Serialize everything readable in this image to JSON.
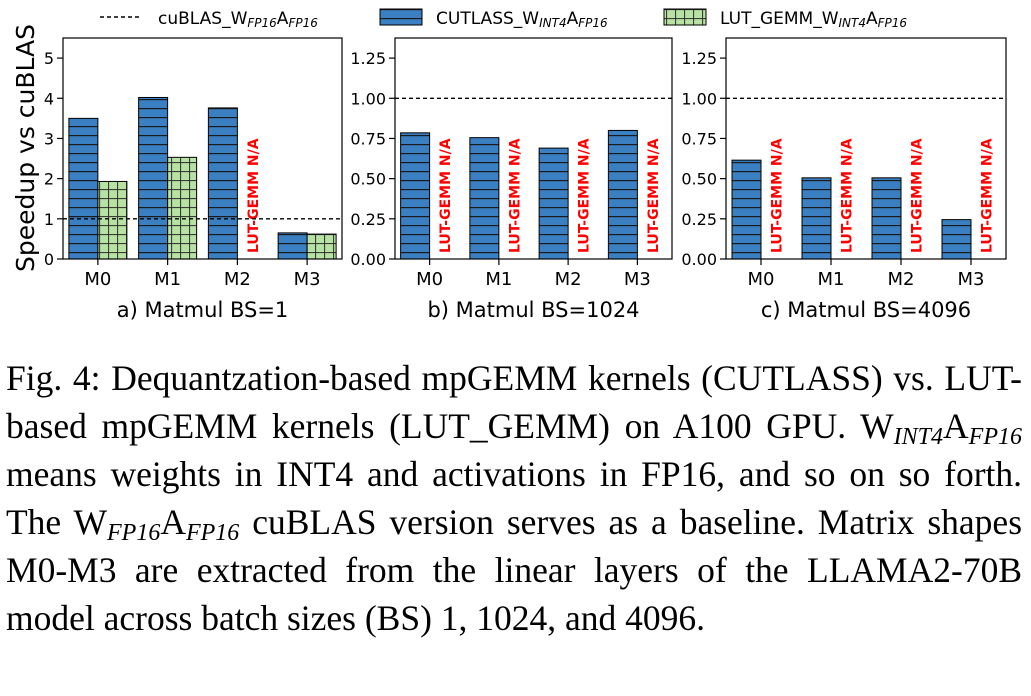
{
  "legend": [
    {
      "kind": "line",
      "text": "cuBLAS_W",
      "sub1": "FP16",
      "mid": "A",
      "sub2": "FP16"
    },
    {
      "kind": "box",
      "text": "CUTLASS_W",
      "sub1": "INT4",
      "mid": "A",
      "sub2": "FP16",
      "fill": "#3a7fc1",
      "hatch": "h"
    },
    {
      "kind": "box",
      "text": "LUT_GEMM_W",
      "sub1": "INT4",
      "mid": "A",
      "sub2": "FP16",
      "fill": "#b7e2a3",
      "hatch": "hv"
    }
  ],
  "y_axis_label": "Speedup vs cuBLAS",
  "colors": {
    "cutlass": "#3a7fc1",
    "lut": "#b7e2a3",
    "na": "#ff0000"
  },
  "chart_data": [
    {
      "type": "bar",
      "subtitle": "a) Matmul BS=1",
      "categories": [
        "M0",
        "M1",
        "M2",
        "M3"
      ],
      "ylim": [
        0,
        5.5
      ],
      "yticks": [
        0,
        1,
        2,
        3,
        4,
        5
      ],
      "yticklabels": [
        "0",
        "1",
        "2",
        "3",
        "4",
        "5"
      ],
      "baseline": 1.0,
      "series": [
        {
          "name": "CUTLASS",
          "values": [
            3.5,
            4.02,
            3.76,
            0.65
          ]
        },
        {
          "name": "LUT_GEMM",
          "values": [
            1.93,
            2.53,
            null,
            0.62
          ]
        }
      ],
      "na_label": "LUT-GEMM N/A",
      "na_categories": [
        2
      ]
    },
    {
      "type": "bar",
      "subtitle": "b) Matmul BS=1024",
      "categories": [
        "M0",
        "M1",
        "M2",
        "M3"
      ],
      "ylim": [
        0,
        1.375
      ],
      "yticks": [
        0,
        0.25,
        0.5,
        0.75,
        1.0,
        1.25
      ],
      "yticklabels": [
        "0.00",
        "0.25",
        "0.50",
        "0.75",
        "1.00",
        "1.25"
      ],
      "baseline": 1.0,
      "series": [
        {
          "name": "CUTLASS",
          "values": [
            0.785,
            0.755,
            0.69,
            0.8
          ]
        },
        {
          "name": "LUT_GEMM",
          "values": [
            null,
            null,
            null,
            null
          ]
        }
      ],
      "na_label": "LUT-GEMM N/A",
      "na_categories": [
        0,
        1,
        2,
        3
      ]
    },
    {
      "type": "bar",
      "subtitle": "c) Matmul BS=4096",
      "categories": [
        "M0",
        "M1",
        "M2",
        "M3"
      ],
      "ylim": [
        0,
        1.375
      ],
      "yticks": [
        0,
        0.25,
        0.5,
        0.75,
        1.0,
        1.25
      ],
      "yticklabels": [
        "0.00",
        "0.25",
        "0.50",
        "0.75",
        "1.00",
        "1.25"
      ],
      "baseline": 1.0,
      "series": [
        {
          "name": "CUTLASS",
          "values": [
            0.615,
            0.505,
            0.505,
            0.245
          ]
        },
        {
          "name": "LUT_GEMM",
          "values": [
            null,
            null,
            null,
            null
          ]
        }
      ],
      "na_label": "LUT-GEMM N/A",
      "na_categories": [
        0,
        1,
        2,
        3
      ]
    }
  ],
  "caption": {
    "p1": "Fig. 4: Dequantzation-based mpGEMM kernels (CUTLASS) vs. LUT-based mpGEMM kernels (LUT_GEMM) on A100 GPU. W",
    "s1": "INT4",
    "p2": "A",
    "s2": "FP16",
    "p3": " means weights in INT4 and activations in FP16, and so on so forth. The W",
    "s3": "FP16",
    "p4": "A",
    "s4": "FP16",
    "p5": " cuBLAS version serves as a baseline. Matrix shapes M0-M3 are extracted from the linear layers of the LLAMA2-70B model across batch sizes (BS) 1, 1024, and 4096."
  }
}
